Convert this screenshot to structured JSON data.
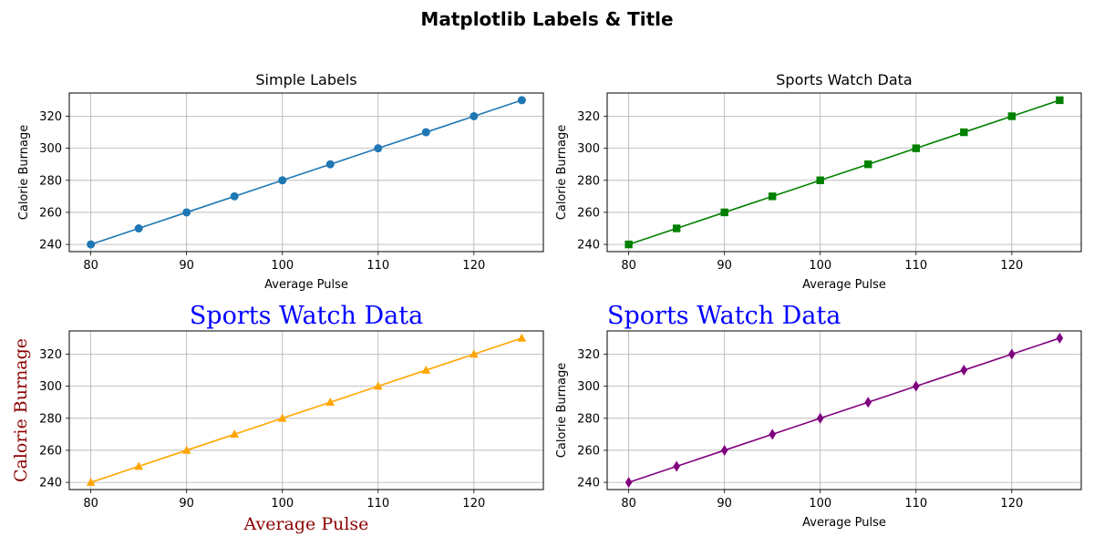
{
  "figure_title": "Matplotlib Labels & Title",
  "chart_data": [
    {
      "type": "line",
      "title": "Simple Labels",
      "title_style": "default",
      "title_align": "center",
      "xlabel": "Average Pulse",
      "ylabel": "Calorie Burnage",
      "label_style": "default",
      "x": [
        80,
        85,
        90,
        95,
        100,
        105,
        110,
        115,
        120,
        125
      ],
      "series": [
        {
          "values": [
            240,
            250,
            260,
            270,
            280,
            290,
            300,
            310,
            320,
            330
          ],
          "color": "#1f77b4",
          "marker": "circle"
        }
      ],
      "xticks": [
        80,
        90,
        100,
        110,
        120
      ],
      "yticks": [
        240,
        260,
        280,
        300,
        320
      ],
      "xlim": [
        77.75,
        127.25
      ],
      "ylim": [
        235.5,
        334.5
      ],
      "grid": true
    },
    {
      "type": "line",
      "title": "Sports Watch Data",
      "title_style": "default",
      "title_align": "center",
      "xlabel": "Average Pulse",
      "ylabel": "Calorie Burnage",
      "label_style": "default",
      "x": [
        80,
        85,
        90,
        95,
        100,
        105,
        110,
        115,
        120,
        125
      ],
      "series": [
        {
          "values": [
            240,
            250,
            260,
            270,
            280,
            290,
            300,
            310,
            320,
            330
          ],
          "color": "#008000",
          "marker": "square"
        }
      ],
      "xticks": [
        80,
        90,
        100,
        110,
        120
      ],
      "yticks": [
        240,
        260,
        280,
        300,
        320
      ],
      "xlim": [
        77.75,
        127.25
      ],
      "ylim": [
        235.5,
        334.5
      ],
      "grid": true
    },
    {
      "type": "line",
      "title": "Sports Watch Data",
      "title_style": "serif-blue",
      "title_align": "center",
      "title_color": "#0000ff",
      "xlabel": "Average Pulse",
      "ylabel": "Calorie Burnage",
      "label_style": "serif-darkred",
      "label_color": "#8b0000",
      "x": [
        80,
        85,
        90,
        95,
        100,
        105,
        110,
        115,
        120,
        125
      ],
      "series": [
        {
          "values": [
            240,
            250,
            260,
            270,
            280,
            290,
            300,
            310,
            320,
            330
          ],
          "color": "#ffa500",
          "marker": "triangle"
        }
      ],
      "xticks": [
        80,
        90,
        100,
        110,
        120
      ],
      "yticks": [
        240,
        260,
        280,
        300,
        320
      ],
      "xlim": [
        77.75,
        127.25
      ],
      "ylim": [
        235.5,
        334.5
      ],
      "grid": true
    },
    {
      "type": "line",
      "title": "Sports Watch Data",
      "title_style": "serif-blue",
      "title_align": "left",
      "title_color": "#0000ff",
      "xlabel": "Average Pulse",
      "ylabel": "Calorie Burnage",
      "label_style": "default",
      "x": [
        80,
        85,
        90,
        95,
        100,
        105,
        110,
        115,
        120,
        125
      ],
      "series": [
        {
          "values": [
            240,
            250,
            260,
            270,
            280,
            290,
            300,
            310,
            320,
            330
          ],
          "color": "#800080",
          "marker": "diamond"
        }
      ],
      "xticks": [
        80,
        90,
        100,
        110,
        120
      ],
      "yticks": [
        240,
        260,
        280,
        300,
        320
      ],
      "xlim": [
        77.75,
        127.25
      ],
      "ylim": [
        235.5,
        334.5
      ],
      "grid": true
    }
  ]
}
